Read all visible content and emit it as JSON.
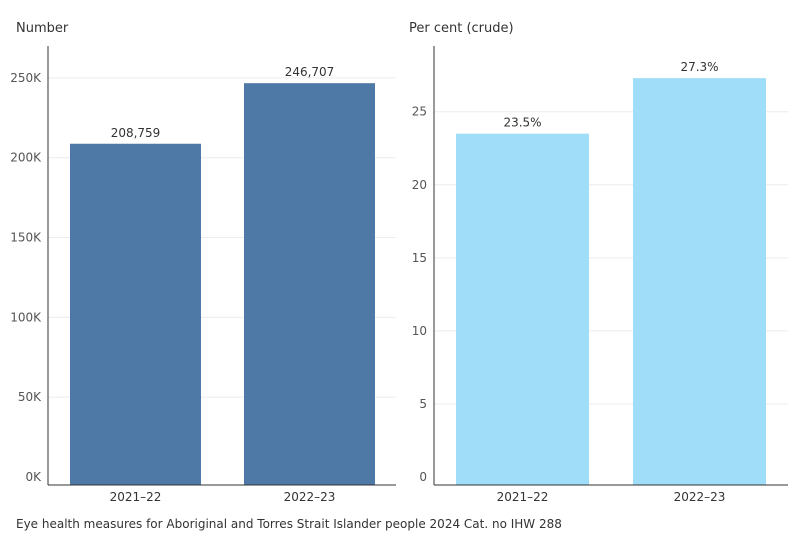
{
  "chart_data": [
    {
      "type": "bar",
      "ylabel": "Number",
      "categories": [
        "2021–22",
        "2022–23"
      ],
      "values": [
        208759,
        246707
      ],
      "data_labels": [
        "208,759",
        "246,707"
      ],
      "ylim": [
        0,
        270000
      ],
      "yticks": [
        0,
        50000,
        100000,
        150000,
        200000,
        250000
      ],
      "ytick_labels": [
        "0K",
        "50K",
        "100K",
        "150K",
        "200K",
        "250K"
      ],
      "color": "#4e79a7",
      "grid": true
    },
    {
      "type": "bar",
      "ylabel": "Per cent (crude)",
      "categories": [
        "2021–22",
        "2022–23"
      ],
      "values": [
        23.5,
        27.3
      ],
      "data_labels": [
        "23.5%",
        "27.3%"
      ],
      "ylim": [
        0,
        29.5
      ],
      "yticks": [
        0,
        5,
        10,
        15,
        20,
        25
      ],
      "ytick_labels": [
        "0",
        "5",
        "10",
        "15",
        "20",
        "25"
      ],
      "color": "#a0ddf8",
      "grid": true
    }
  ],
  "footer": "Eye health measures for Aboriginal and Torres Strait Islander people 2024 Cat. no IHW 288"
}
